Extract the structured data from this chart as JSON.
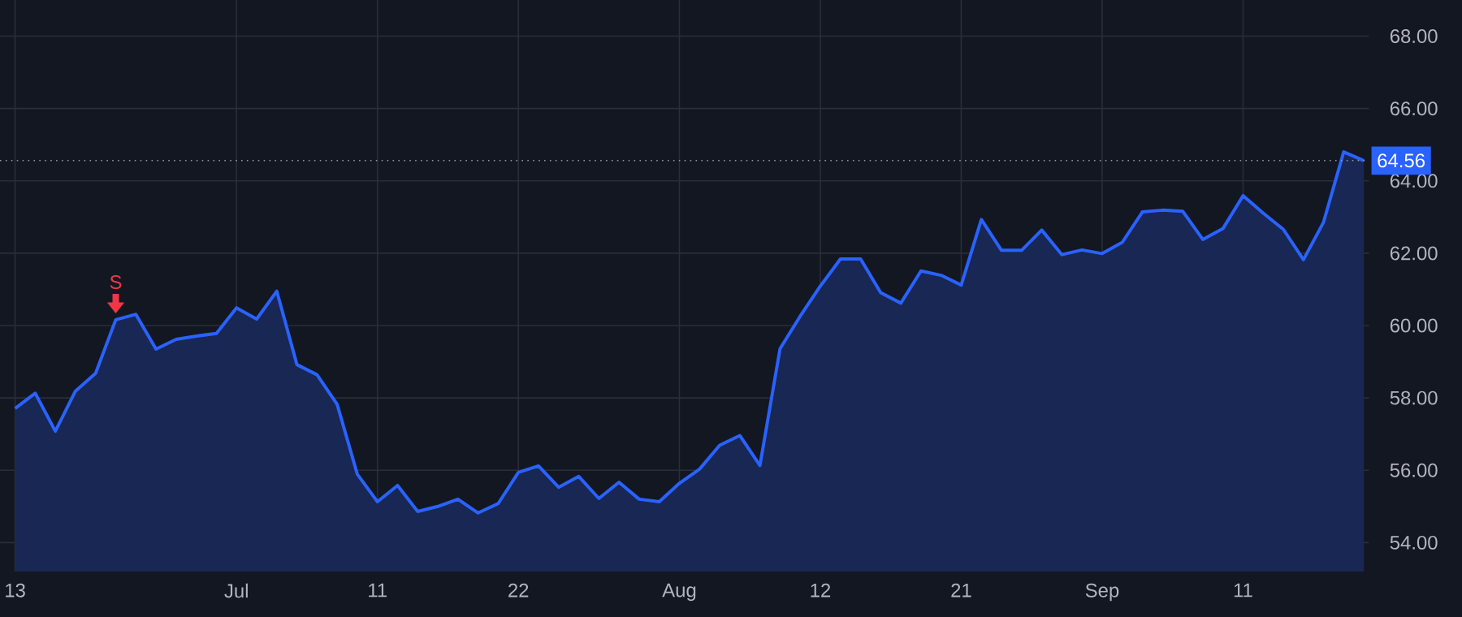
{
  "chart_data": {
    "type": "area",
    "categories": [
      "13",
      null,
      null,
      null,
      null,
      null,
      null,
      null,
      null,
      null,
      null,
      "Jul",
      null,
      null,
      null,
      null,
      null,
      null,
      "11",
      null,
      null,
      null,
      null,
      null,
      null,
      "22",
      null,
      null,
      null,
      null,
      null,
      null,
      null,
      "Aug",
      null,
      null,
      null,
      null,
      null,
      null,
      "12",
      null,
      null,
      null,
      null,
      null,
      null,
      "21",
      null,
      null,
      null,
      null,
      null,
      null,
      "Sep",
      null,
      null,
      null,
      null,
      null,
      null,
      "11",
      null,
      null,
      null,
      null,
      null,
      null
    ],
    "series": [
      {
        "color": "#2962ff",
        "values": [
          57.71,
          58.13,
          57.08,
          58.19,
          58.68,
          60.16,
          60.31,
          59.35,
          59.62,
          59.71,
          59.78,
          60.49,
          60.18,
          60.95,
          58.92,
          58.64,
          57.82,
          55.89,
          55.13,
          55.58,
          54.86,
          55.0,
          55.2,
          54.82,
          55.08,
          55.94,
          56.12,
          55.53,
          55.83,
          55.22,
          55.67,
          55.2,
          55.13,
          55.64,
          56.03,
          56.69,
          56.96,
          56.13,
          59.36,
          60.26,
          61.09,
          61.84,
          61.84,
          60.91,
          60.62,
          61.51,
          61.39,
          61.12,
          62.93,
          62.08,
          62.08,
          62.64,
          61.96,
          62.09,
          61.99,
          62.3,
          63.14,
          63.19,
          63.16,
          62.38,
          62.68,
          63.59,
          63.11,
          62.66,
          61.82,
          62.86,
          64.8,
          64.56
        ]
      }
    ],
    "ylim": [
      53.2,
      69.0
    ],
    "yticks": [
      {
        "value": 54,
        "label": "54.00"
      },
      {
        "value": 56,
        "label": "56.00"
      },
      {
        "value": 58,
        "label": "58.00"
      },
      {
        "value": 60,
        "label": "60.00"
      },
      {
        "value": 62,
        "label": "62.00"
      },
      {
        "value": 64,
        "label": "64.00"
      },
      {
        "value": 66,
        "label": "66.00"
      },
      {
        "value": 68,
        "label": "68.00"
      }
    ],
    "grid": true,
    "ref_lines": [
      {
        "axis": "y",
        "value": 64.56,
        "label": "64.56",
        "color": "#9598a1",
        "line_style": "dotted"
      }
    ],
    "annotations": [
      {
        "text": "S",
        "y": 60.16
      }
    ]
  }
}
